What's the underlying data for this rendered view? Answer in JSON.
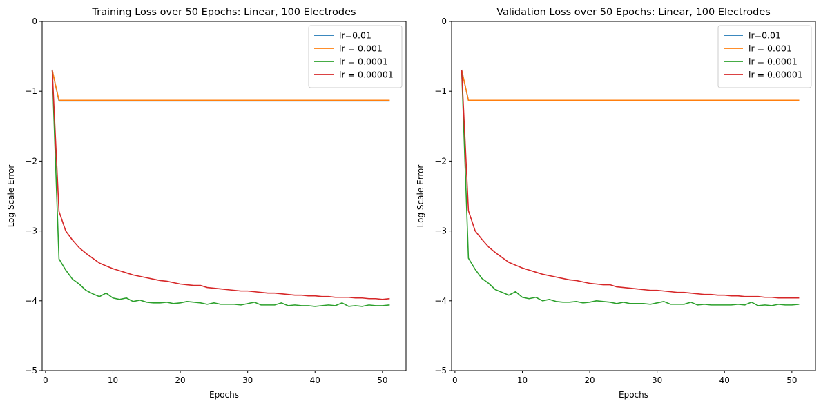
{
  "chart_data": [
    {
      "type": "line",
      "title": "Training Loss over 50 Epochs: Linear, 100 Electrodes",
      "xlabel": "Epochs",
      "ylabel": "Log Scale Error",
      "xlim": [
        -0.5,
        53.5
      ],
      "ylim": [
        -5,
        0
      ],
      "xticks": [
        0,
        10,
        20,
        30,
        40,
        50
      ],
      "yticks": [
        0,
        -1,
        -2,
        -3,
        -4,
        -5
      ],
      "yticklabels": [
        "0",
        "−1",
        "−2",
        "−3",
        "−4",
        "−5"
      ],
      "grid": false,
      "legend_position": "top-right",
      "x": [
        1,
        2,
        3,
        4,
        5,
        6,
        7,
        8,
        9,
        10,
        11,
        12,
        13,
        14,
        15,
        16,
        17,
        18,
        19,
        20,
        21,
        22,
        23,
        24,
        25,
        26,
        27,
        28,
        29,
        30,
        31,
        32,
        33,
        34,
        35,
        36,
        37,
        38,
        39,
        40,
        41,
        42,
        43,
        44,
        45,
        46,
        47,
        48,
        49,
        50,
        51
      ],
      "series": [
        {
          "name": "lr=0.01",
          "color": "#1f77b4",
          "values": [
            -0.7,
            -1.14,
            -1.14,
            -1.14,
            -1.14,
            -1.14,
            -1.14,
            -1.14,
            -1.14,
            -1.14,
            -1.14,
            -1.14,
            -1.14,
            -1.14,
            -1.14,
            -1.14,
            -1.14,
            -1.14,
            -1.14,
            -1.14,
            -1.14,
            -1.14,
            -1.14,
            -1.14,
            -1.14,
            -1.14,
            -1.14,
            -1.14,
            -1.14,
            -1.14,
            -1.14,
            -1.14,
            -1.14,
            -1.14,
            -1.14,
            -1.14,
            -1.14,
            -1.14,
            -1.14,
            -1.14,
            -1.14,
            -1.14,
            -1.14,
            -1.14,
            -1.14,
            -1.14,
            -1.14,
            -1.14,
            -1.14,
            -1.14,
            -1.14
          ]
        },
        {
          "name": "lr = 0.001",
          "color": "#ff7f0e",
          "values": [
            -0.7,
            -1.13,
            -1.13,
            -1.13,
            -1.13,
            -1.13,
            -1.13,
            -1.13,
            -1.13,
            -1.13,
            -1.13,
            -1.13,
            -1.13,
            -1.13,
            -1.13,
            -1.13,
            -1.13,
            -1.13,
            -1.13,
            -1.13,
            -1.13,
            -1.13,
            -1.13,
            -1.13,
            -1.13,
            -1.13,
            -1.13,
            -1.13,
            -1.13,
            -1.13,
            -1.13,
            -1.13,
            -1.13,
            -1.13,
            -1.13,
            -1.13,
            -1.13,
            -1.13,
            -1.13,
            -1.13,
            -1.13,
            -1.13,
            -1.13,
            -1.13,
            -1.13,
            -1.13,
            -1.13,
            -1.13,
            -1.13,
            -1.13,
            -1.13
          ]
        },
        {
          "name": "lr = 0.0001",
          "color": "#2ca02c",
          "values": [
            -0.7,
            -3.4,
            -3.56,
            -3.69,
            -3.76,
            -3.85,
            -3.9,
            -3.94,
            -3.89,
            -3.96,
            -3.98,
            -3.96,
            -4.01,
            -3.99,
            -4.02,
            -4.03,
            -4.03,
            -4.02,
            -4.04,
            -4.03,
            -4.01,
            -4.02,
            -4.03,
            -4.05,
            -4.03,
            -4.05,
            -4.05,
            -4.05,
            -4.06,
            -4.04,
            -4.02,
            -4.06,
            -4.06,
            -4.06,
            -4.03,
            -4.07,
            -4.06,
            -4.07,
            -4.07,
            -4.08,
            -4.07,
            -4.06,
            -4.07,
            -4.03,
            -4.08,
            -4.07,
            -4.08,
            -4.06,
            -4.07,
            -4.07,
            -4.06
          ]
        },
        {
          "name": "lr = 0.00001",
          "color": "#d62728",
          "values": [
            -0.7,
            -2.72,
            -3.0,
            -3.13,
            -3.24,
            -3.32,
            -3.39,
            -3.46,
            -3.5,
            -3.54,
            -3.57,
            -3.6,
            -3.63,
            -3.65,
            -3.67,
            -3.69,
            -3.71,
            -3.72,
            -3.74,
            -3.76,
            -3.77,
            -3.78,
            -3.78,
            -3.81,
            -3.82,
            -3.83,
            -3.84,
            -3.85,
            -3.86,
            -3.86,
            -3.87,
            -3.88,
            -3.89,
            -3.89,
            -3.9,
            -3.91,
            -3.92,
            -3.92,
            -3.93,
            -3.93,
            -3.94,
            -3.94,
            -3.95,
            -3.95,
            -3.95,
            -3.96,
            -3.96,
            -3.97,
            -3.97,
            -3.98,
            -3.97
          ]
        }
      ]
    },
    {
      "type": "line",
      "title": "Validation Loss over 50 Epochs: Linear, 100 Electrodes",
      "xlabel": "Epochs",
      "ylabel": "Log Scale Error",
      "xlim": [
        -0.5,
        53.5
      ],
      "ylim": [
        -5,
        0
      ],
      "xticks": [
        0,
        10,
        20,
        30,
        40,
        50
      ],
      "yticks": [
        0,
        -1,
        -2,
        -3,
        -4,
        -5
      ],
      "yticklabels": [
        "0",
        "−1",
        "−2",
        "−3",
        "−4",
        "−5"
      ],
      "grid": false,
      "legend_position": "top-right",
      "x": [
        1,
        2,
        3,
        4,
        5,
        6,
        7,
        8,
        9,
        10,
        11,
        12,
        13,
        14,
        15,
        16,
        17,
        18,
        19,
        20,
        21,
        22,
        23,
        24,
        25,
        26,
        27,
        28,
        29,
        30,
        31,
        32,
        33,
        34,
        35,
        36,
        37,
        38,
        39,
        40,
        41,
        42,
        43,
        44,
        45,
        46,
        47,
        48,
        49,
        50,
        51
      ],
      "series": [
        {
          "name": "lr=0.01",
          "color": "#1f77b4",
          "values": [
            -0.7,
            -1.13,
            -1.13,
            -1.13,
            -1.13,
            -1.13,
            -1.13,
            -1.13,
            -1.13,
            -1.13,
            -1.13,
            -1.13,
            -1.13,
            -1.13,
            -1.13,
            -1.13,
            -1.13,
            -1.13,
            -1.13,
            -1.13,
            -1.13,
            -1.13,
            -1.13,
            -1.13,
            -1.13,
            -1.13,
            -1.13,
            -1.13,
            -1.13,
            -1.13,
            -1.13,
            -1.13,
            -1.13,
            -1.13,
            -1.13,
            -1.13,
            -1.13,
            -1.13,
            -1.13,
            -1.13,
            -1.13,
            -1.13,
            -1.13,
            -1.13,
            -1.13,
            -1.13,
            -1.13,
            -1.13,
            -1.13,
            -1.13,
            -1.13
          ]
        },
        {
          "name": "lr = 0.001",
          "color": "#ff7f0e",
          "values": [
            -0.7,
            -1.13,
            -1.13,
            -1.13,
            -1.13,
            -1.13,
            -1.13,
            -1.13,
            -1.13,
            -1.13,
            -1.13,
            -1.13,
            -1.13,
            -1.13,
            -1.13,
            -1.13,
            -1.13,
            -1.13,
            -1.13,
            -1.13,
            -1.13,
            -1.13,
            -1.13,
            -1.13,
            -1.13,
            -1.13,
            -1.13,
            -1.13,
            -1.13,
            -1.13,
            -1.13,
            -1.13,
            -1.13,
            -1.13,
            -1.13,
            -1.13,
            -1.13,
            -1.13,
            -1.13,
            -1.13,
            -1.13,
            -1.13,
            -1.13,
            -1.13,
            -1.13,
            -1.13,
            -1.13,
            -1.13,
            -1.13,
            -1.13,
            -1.13
          ]
        },
        {
          "name": "lr = 0.0001",
          "color": "#2ca02c",
          "values": [
            -0.7,
            -3.39,
            -3.55,
            -3.68,
            -3.75,
            -3.84,
            -3.88,
            -3.92,
            -3.87,
            -3.95,
            -3.97,
            -3.95,
            -4.0,
            -3.98,
            -4.01,
            -4.02,
            -4.02,
            -4.01,
            -4.03,
            -4.02,
            -4.0,
            -4.01,
            -4.02,
            -4.04,
            -4.02,
            -4.04,
            -4.04,
            -4.04,
            -4.05,
            -4.03,
            -4.01,
            -4.05,
            -4.05,
            -4.05,
            -4.02,
            -4.06,
            -4.05,
            -4.06,
            -4.06,
            -4.06,
            -4.06,
            -4.05,
            -4.06,
            -4.02,
            -4.07,
            -4.06,
            -4.07,
            -4.05,
            -4.06,
            -4.06,
            -4.05
          ]
        },
        {
          "name": "lr = 0.00001",
          "color": "#d62728",
          "values": [
            -0.7,
            -2.71,
            -3.0,
            -3.12,
            -3.23,
            -3.31,
            -3.38,
            -3.45,
            -3.49,
            -3.53,
            -3.56,
            -3.59,
            -3.62,
            -3.64,
            -3.66,
            -3.68,
            -3.7,
            -3.71,
            -3.73,
            -3.75,
            -3.76,
            -3.77,
            -3.77,
            -3.8,
            -3.81,
            -3.82,
            -3.83,
            -3.84,
            -3.85,
            -3.85,
            -3.86,
            -3.87,
            -3.88,
            -3.88,
            -3.89,
            -3.9,
            -3.91,
            -3.91,
            -3.92,
            -3.92,
            -3.93,
            -3.93,
            -3.94,
            -3.94,
            -3.94,
            -3.95,
            -3.95,
            -3.96,
            -3.96,
            -3.96,
            -3.96
          ]
        }
      ]
    }
  ]
}
